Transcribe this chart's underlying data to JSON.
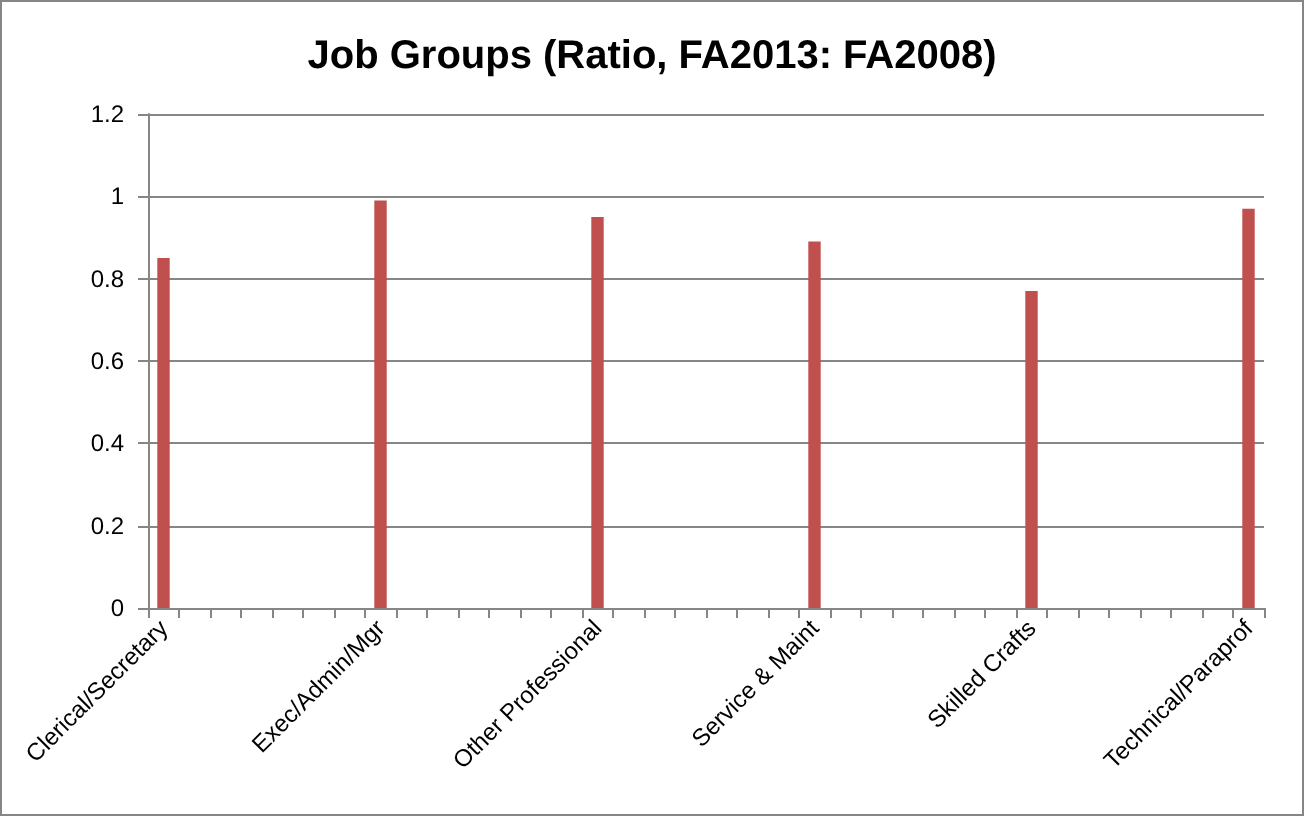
{
  "chart_data": {
    "type": "bar",
    "title": "Job Groups (Ratio, FA2013: FA2008)",
    "categories": [
      "Clerical/Secretary",
      null,
      null,
      null,
      null,
      null,
      null,
      "Exec/Admin/Mgr",
      null,
      null,
      null,
      null,
      null,
      null,
      "Other Professional",
      null,
      null,
      null,
      null,
      null,
      null,
      "Service & Maint",
      null,
      null,
      null,
      null,
      null,
      null,
      "Skilled Crafts",
      null,
      null,
      null,
      null,
      null,
      null,
      "Technical/Paraprof"
    ],
    "values": [
      0.85,
      null,
      null,
      null,
      null,
      null,
      null,
      0.99,
      null,
      null,
      null,
      null,
      null,
      null,
      0.95,
      null,
      null,
      null,
      null,
      null,
      null,
      0.89,
      null,
      null,
      null,
      null,
      null,
      null,
      0.77,
      null,
      null,
      null,
      null,
      null,
      null,
      0.97
    ],
    "color": "#c0504d",
    "ylim": [
      0,
      1.2
    ],
    "yticks": [
      0,
      0.2,
      0.4,
      0.6,
      0.8,
      1,
      1.2
    ],
    "grid": "y"
  }
}
